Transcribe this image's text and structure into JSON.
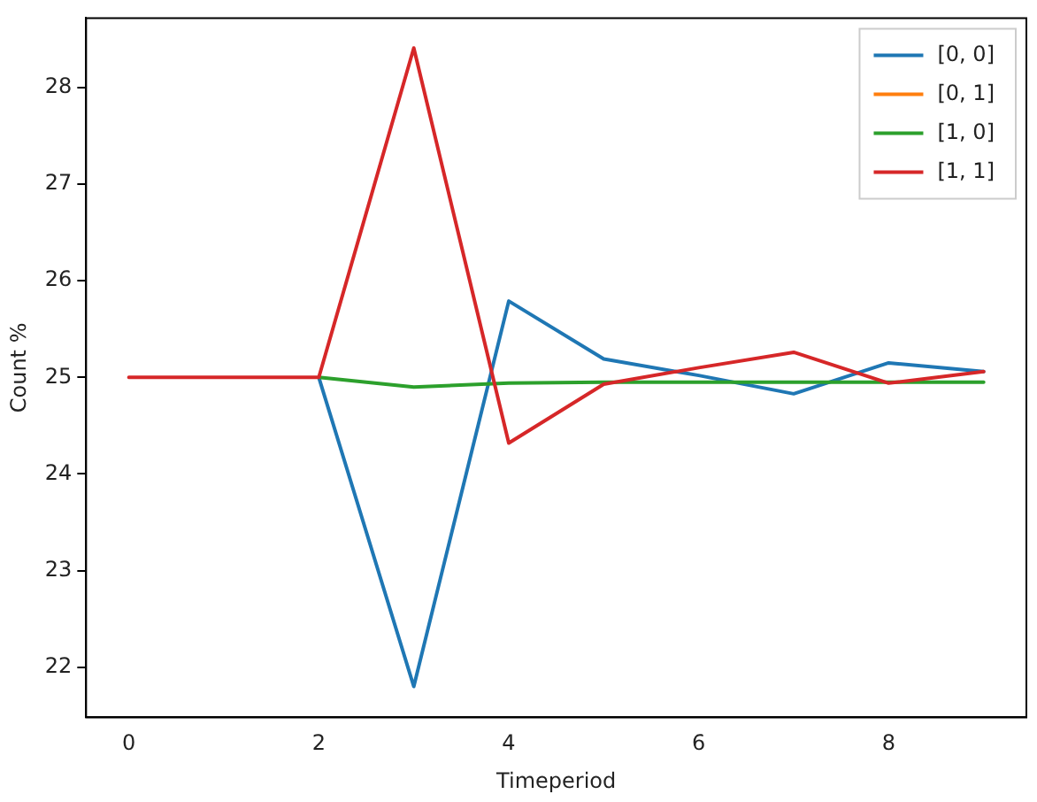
{
  "chart_data": {
    "type": "line",
    "xlabel": "Timeperiod",
    "ylabel": "Count %",
    "x": [
      0,
      1,
      2,
      3,
      4,
      5,
      6,
      7,
      8,
      9
    ],
    "series": [
      {
        "name": "[0, 0]",
        "color": "#1f77b4",
        "values": [
          null,
          null,
          25,
          21.8,
          25.79,
          25.19,
          25.02,
          24.83,
          25.15,
          25.06
        ]
      },
      {
        "name": "[0, 1]",
        "color": "#ff7f0e",
        "values": [
          null,
          null,
          null,
          null,
          null,
          null,
          null,
          null,
          null,
          null
        ]
      },
      {
        "name": "[1, 0]",
        "color": "#2ca02c",
        "values": [
          null,
          null,
          25,
          24.9,
          24.94,
          24.95,
          24.95,
          24.95,
          24.95,
          24.95
        ]
      },
      {
        "name": "[1, 1]",
        "color": "#d62728",
        "values": [
          25,
          25,
          25,
          28.41,
          24.32,
          24.93,
          25.1,
          25.26,
          24.94,
          25.06
        ]
      }
    ],
    "xlim": [
      -0.45,
      9.45
    ],
    "xticks": [
      0,
      2,
      4,
      6,
      8
    ],
    "ylim": [
      21.48,
      28.72
    ],
    "yticks": [
      22,
      23,
      24,
      25,
      26,
      27,
      28
    ],
    "grid": false,
    "legend": "top right",
    "marker": "none",
    "line_style": "solid"
  }
}
